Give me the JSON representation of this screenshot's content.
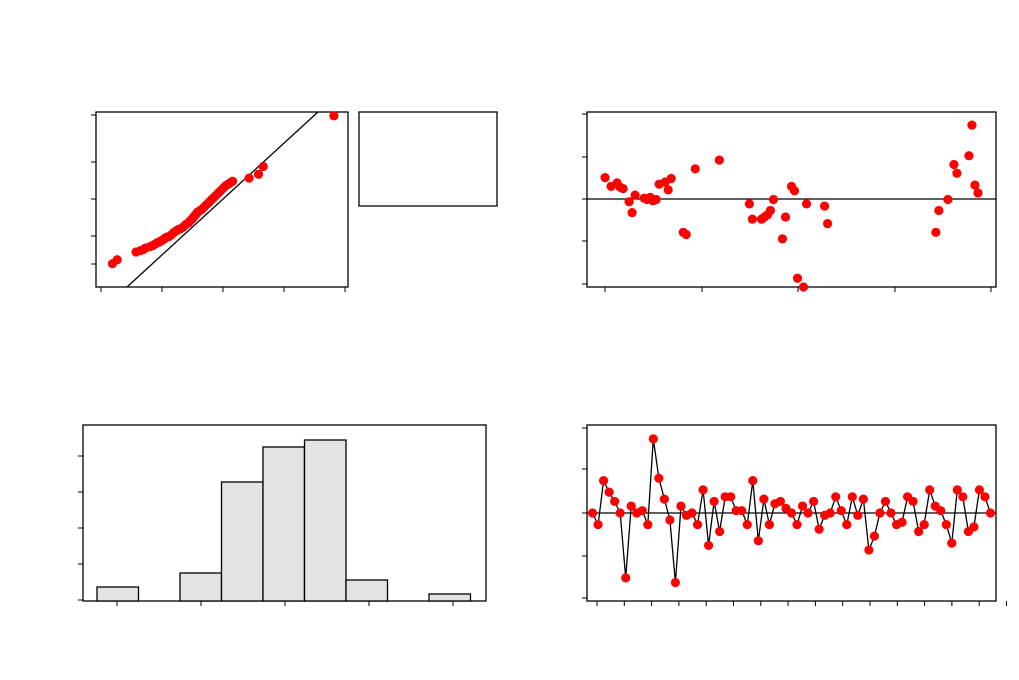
{
  "colors": {
    "point": "#ff0000",
    "bar_fill": "#e3e3e3",
    "line": "#000000"
  },
  "chart_data": [
    {
      "type": "scatter",
      "panel": "normal-probability-plot",
      "reference_line": true,
      "legend_box": "right, empty",
      "x": [
        -2.4,
        -2.3,
        -1.9,
        -1.8,
        -1.75,
        -1.7,
        -1.6,
        -1.55,
        -1.5,
        -1.45,
        -1.4,
        -1.38,
        -1.35,
        -1.3,
        -1.28,
        -1.25,
        -1.2,
        -1.15,
        -1.1,
        -1.05,
        -1.0,
        -0.95,
        -0.9,
        -0.85,
        -0.8,
        -0.78,
        -0.75,
        -0.72,
        -0.7,
        -0.68,
        -0.65,
        -0.62,
        -0.6,
        -0.55,
        -0.5,
        -0.45,
        -0.4,
        -0.35,
        -0.3,
        -0.25,
        -0.2,
        -0.15,
        -0.1,
        -0.05,
        0.0,
        0.05,
        0.1,
        0.15,
        0.5,
        0.7,
        0.8,
        2.3
      ],
      "y": [
        -0.07,
        -0.065,
        -0.055,
        -0.053,
        -0.052,
        -0.05,
        -0.048,
        -0.047,
        -0.045,
        -0.043,
        -0.042,
        -0.041,
        -0.04,
        -0.038,
        -0.037,
        -0.036,
        -0.035,
        -0.033,
        -0.03,
        -0.028,
        -0.026,
        -0.025,
        -0.023,
        -0.02,
        -0.018,
        -0.017,
        -0.015,
        -0.013,
        -0.012,
        -0.01,
        -0.008,
        -0.006,
        -0.004,
        -0.002,
        0.0,
        0.003,
        0.006,
        0.009,
        0.012,
        0.015,
        0.018,
        0.021,
        0.024,
        0.027,
        0.03,
        0.032,
        0.034,
        0.036,
        0.04,
        0.045,
        0.055,
        0.12
      ],
      "xlim": [
        -2.75,
        2.6
      ],
      "ylim": [
        -0.1,
        0.125
      ]
    },
    {
      "type": "scatter",
      "panel": "residuals-vs-fitted",
      "zero_line": true,
      "x": [
        0.102,
        0.104,
        0.106,
        0.107,
        0.108,
        0.11,
        0.111,
        0.112,
        0.115,
        0.116,
        0.117,
        0.118,
        0.119,
        0.12,
        0.122,
        0.123,
        0.124,
        0.128,
        0.129,
        0.132,
        0.14,
        0.15,
        0.151,
        0.154,
        0.155,
        0.156,
        0.157,
        0.158,
        0.161,
        0.162,
        0.164,
        0.165,
        0.166,
        0.168,
        0.169,
        0.175,
        0.176,
        0.212,
        0.213,
        0.216,
        0.218,
        0.219,
        0.223,
        0.224,
        0.225,
        0.226
      ],
      "y": [
        0.05,
        0.03,
        0.038,
        0.028,
        0.025,
        -0.005,
        -0.03,
        0.01,
        0.003,
        0.0,
        0.005,
        -0.003,
        0.0,
        0.035,
        0.04,
        0.022,
        0.048,
        -0.075,
        -0.08,
        0.07,
        0.09,
        -0.01,
        -0.045,
        -0.045,
        -0.04,
        -0.035,
        -0.025,
        0.0,
        -0.09,
        -0.04,
        0.03,
        0.02,
        -0.18,
        -0.2,
        -0.01,
        -0.015,
        -0.055,
        -0.075,
        -0.025,
        0.0,
        0.08,
        0.06,
        0.1,
        0.17,
        0.033,
        0.015
      ],
      "xlim": [
        0.096,
        0.232
      ],
      "ylim": [
        -0.2,
        0.2
      ]
    },
    {
      "type": "bar",
      "panel": "histogram-of-residuals",
      "values": [
        2,
        0,
        4,
        17,
        22,
        23,
        3,
        0,
        1
      ],
      "ylim": [
        0,
        24
      ]
    },
    {
      "type": "line",
      "panel": "residuals-vs-order",
      "zero_line": true,
      "x": [
        1,
        2,
        3,
        4,
        5,
        6,
        7,
        8,
        9,
        10,
        11,
        12,
        13,
        14,
        15,
        16,
        17,
        18,
        19,
        20,
        21,
        22,
        23,
        24,
        25,
        26,
        27,
        28,
        29,
        30,
        31,
        32,
        33,
        34,
        35,
        36,
        37,
        38,
        39,
        40,
        41,
        42,
        43,
        44,
        45,
        46,
        47,
        48,
        49,
        50,
        51,
        52,
        53,
        54,
        55,
        56,
        57,
        58,
        59,
        60,
        61,
        62,
        63,
        64,
        65,
        66,
        67,
        68,
        69,
        70,
        71,
        72,
        73
      ],
      "y": [
        0.0,
        -0.05,
        0.14,
        0.09,
        0.05,
        0.0,
        -0.28,
        0.03,
        0.0,
        0.01,
        -0.05,
        0.32,
        0.15,
        0.06,
        -0.03,
        -0.3,
        0.03,
        -0.01,
        0.0,
        -0.05,
        0.1,
        -0.14,
        0.05,
        -0.08,
        0.07,
        0.07,
        0.01,
        0.01,
        -0.05,
        0.14,
        -0.12,
        0.06,
        -0.05,
        0.04,
        0.05,
        0.02,
        0.0,
        -0.05,
        0.03,
        0.0,
        0.05,
        -0.07,
        -0.01,
        0.0,
        0.07,
        0.01,
        -0.05,
        0.07,
        -0.01,
        0.06,
        -0.16,
        -0.1,
        0.0,
        0.05,
        0.0,
        -0.05,
        -0.04,
        0.07,
        0.05,
        -0.08,
        -0.05,
        0.1,
        0.03,
        0.01,
        -0.05,
        -0.13,
        0.1,
        0.07,
        -0.08,
        -0.06,
        0.1,
        0.07,
        0.0
      ],
      "xlim": [
        0,
        74
      ],
      "ylim": [
        -0.38,
        0.38
      ]
    }
  ]
}
